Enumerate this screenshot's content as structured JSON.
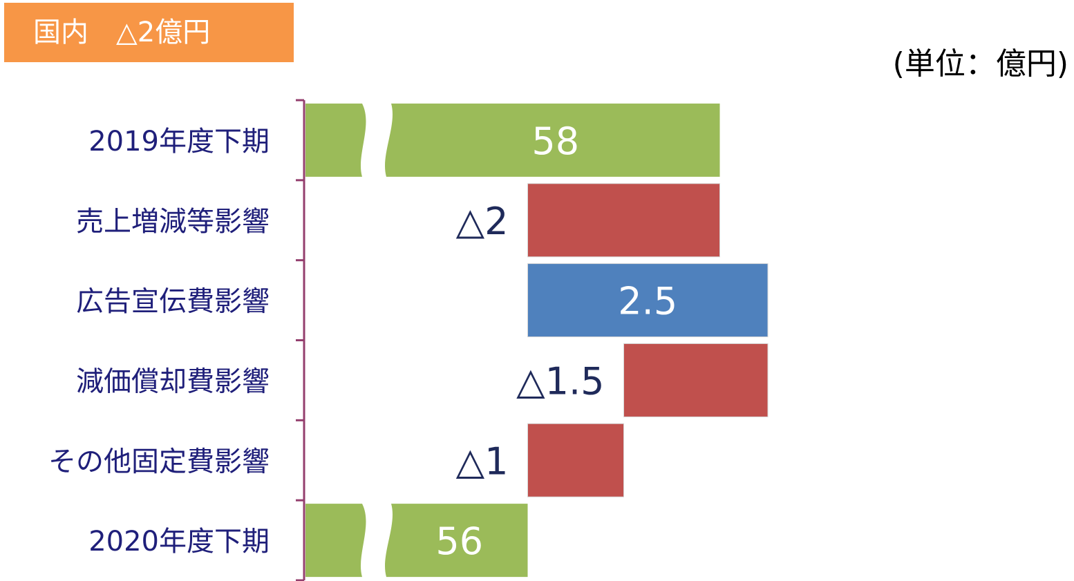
{
  "header": {
    "badge": "国内　△2億円",
    "unit": "(単位：億円)"
  },
  "colors": {
    "total": "#9bbb59",
    "decrease": "#c0504d",
    "increase": "#4f81bd",
    "axis": "#943f6e",
    "category_text": "#1f1f7a",
    "badge_bg": "#f79646"
  },
  "chart_data": {
    "type": "bar",
    "subtype": "waterfall",
    "orientation": "horizontal",
    "axis_break": true,
    "categories": [
      "2019年度下期",
      "売上増減等影響",
      "広告宣伝費影響",
      "減価償却費影響",
      "その他固定費影響",
      "2020年度下期"
    ],
    "values": [
      58,
      -2,
      2.5,
      -1.5,
      -1,
      56
    ],
    "kinds": [
      "total",
      "decrease",
      "increase",
      "decrease",
      "decrease",
      "total"
    ],
    "labels": [
      "58",
      "△2",
      "2.5",
      "△1.5",
      "△1",
      "56"
    ]
  }
}
